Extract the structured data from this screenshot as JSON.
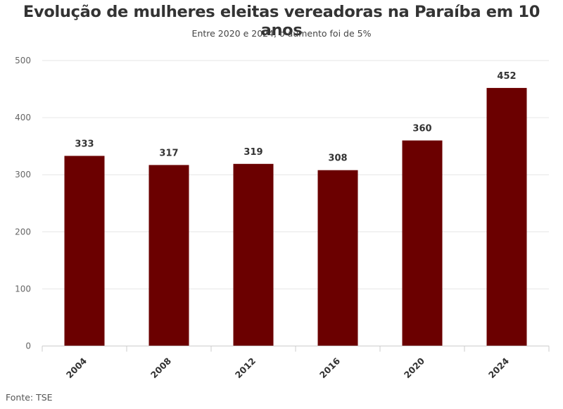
{
  "title": "Evolução de mulheres eleitas vereadoras na Paraíba em 10 anos",
  "subtitle": "Entre 2020 e 2024, o aumento foi de 5%",
  "source": "Fonte: TSE",
  "colors": {
    "bar": "#6b0000",
    "grid": "#e6e6e6",
    "axis": "#cccccc"
  },
  "chart_data": {
    "type": "bar",
    "categories": [
      "2004",
      "2008",
      "2012",
      "2016",
      "2020",
      "2024"
    ],
    "values": [
      333,
      317,
      319,
      308,
      360,
      452
    ],
    "data_labels": [
      "333",
      "317",
      "319",
      "308",
      "360",
      "452"
    ],
    "ylim": [
      0,
      500
    ],
    "yticks": [
      0,
      100,
      200,
      300,
      400,
      500
    ],
    "grid": true,
    "legend": "none"
  }
}
